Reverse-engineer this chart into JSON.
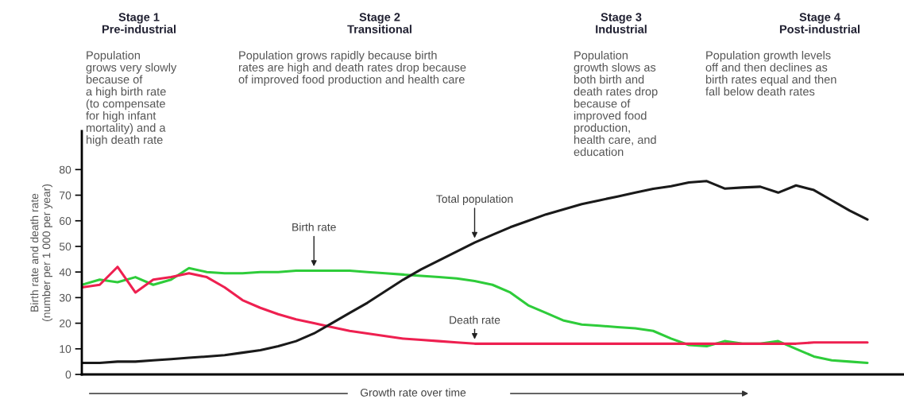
{
  "chart_data": {
    "type": "line",
    "ylabel": "Birth rate and death rate\n(number per 1 000 per year)",
    "xlabel": "Growth rate over time",
    "categories": [
      null,
      null,
      null,
      null,
      null,
      null,
      null,
      null,
      null,
      null,
      null,
      null,
      null,
      null,
      null,
      null,
      null,
      null,
      null,
      null,
      null,
      null,
      null,
      null,
      null,
      null,
      null,
      null,
      null,
      null,
      null,
      null,
      null,
      null,
      null,
      null,
      null,
      null,
      null,
      null,
      null,
      null,
      null,
      null,
      null
    ],
    "series": [
      {
        "name": "Birth rate",
        "color": "#2ecc3a",
        "values": [
          35,
          37,
          36,
          38,
          35,
          37,
          41.5,
          40,
          39.5,
          39.5,
          40,
          40,
          40.5,
          40.5,
          40.5,
          40.5,
          40,
          39.5,
          39,
          38.5,
          38,
          37.5,
          36.5,
          35,
          32,
          27,
          24,
          21,
          19.5,
          19,
          18.5,
          18,
          17,
          14,
          11.5,
          11,
          13,
          12,
          12,
          13,
          10,
          7,
          5.5,
          5,
          4.5
        ]
      },
      {
        "name": "Death rate",
        "color": "#ee2050",
        "values": [
          34,
          35,
          42,
          32,
          37,
          38,
          39.5,
          38,
          34,
          29,
          26,
          23.5,
          21.5,
          20,
          18.5,
          17,
          16,
          15,
          14,
          13.5,
          13,
          12.5,
          12,
          12,
          12,
          12,
          12,
          12,
          12,
          12,
          12,
          12,
          12,
          12,
          12,
          12,
          12,
          12,
          12,
          12,
          12,
          12.5,
          12.5,
          12.5,
          12.5
        ]
      },
      {
        "name": "Total population",
        "color": "#1a1a1a",
        "values": [
          4.5,
          4.5,
          5,
          5,
          5.5,
          6,
          6.5,
          7,
          7.5,
          8.5,
          9.5,
          11,
          13,
          16,
          20,
          24,
          28,
          32.5,
          37,
          41,
          44.5,
          48,
          51.5,
          54.5,
          57.5,
          60,
          62.5,
          64.5,
          66.5,
          68,
          69.5,
          71,
          72.5,
          73.5,
          75,
          75.5,
          72.6,
          73,
          73.3,
          71,
          73.8,
          72,
          68,
          64,
          60.5
        ]
      }
    ],
    "ylim": [
      0,
      95
    ],
    "yticks": [
      0,
      10,
      20,
      30,
      40,
      50,
      60,
      70,
      80
    ],
    "grid": false,
    "legend": false,
    "annotations": [
      "Stage 1\nPre-industrial",
      "Population\ngrows very slowly\nbecause of\na high birth rate\n(to compensate\nfor high infant\nmortality) and a\nhigh death rate",
      "Stage 2\nTransitional",
      "Population grows rapidly because birth\nrates are high and death rates drop because\nof improved food production and health care",
      "Stage 3\nIndustrial",
      "Population\ngrowth slows as\nboth birth and\ndeath rates drop\nbecause of\nimproved food\nproduction,\nhealth care, and\neducation",
      "Stage 4\nPost-industrial",
      "Population growth levels\noff and then declines as\nbirth rates equal and then\nfall below death rates"
    ]
  }
}
